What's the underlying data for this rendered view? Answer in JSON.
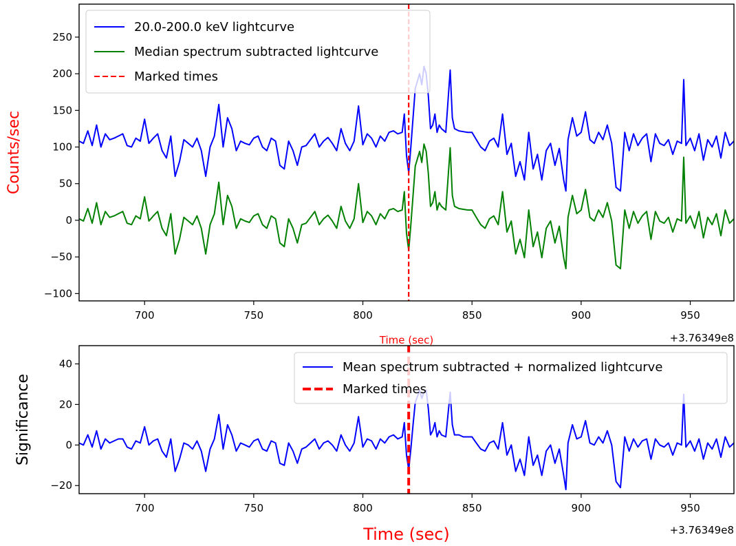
{
  "chart_data": [
    {
      "type": "line",
      "xlabel": "Time (sec)",
      "ylabel": "Counts/sec",
      "xlabel_color": "#ff0000",
      "ylabel_color": "#ff0000",
      "x_offset_label": "+3.76349e8",
      "xlim": [
        670,
        970
      ],
      "ylim": [
        -110,
        295
      ],
      "xticks": [
        700,
        750,
        800,
        850,
        900,
        950
      ],
      "yticks": [
        -100,
        -50,
        0,
        50,
        100,
        150,
        200,
        250
      ],
      "grid": false,
      "legend_position": "top-left",
      "marked_times": [
        821
      ],
      "series": [
        {
          "name": "20.0-200.0 keV lightcurve",
          "color": "#0000ff",
          "x": [
            670,
            672,
            674,
            676,
            678,
            680,
            682,
            684,
            686,
            688,
            690,
            692,
            694,
            696,
            698,
            700,
            702,
            704,
            706,
            708,
            710,
            712,
            714,
            716,
            718,
            720,
            722,
            724,
            726,
            728,
            730,
            732,
            734,
            736,
            738,
            740,
            742,
            744,
            746,
            748,
            750,
            752,
            754,
            756,
            758,
            760,
            762,
            764,
            766,
            768,
            770,
            772,
            774,
            776,
            778,
            780,
            782,
            784,
            786,
            788,
            790,
            792,
            794,
            796,
            798,
            800,
            802,
            804,
            806,
            808,
            810,
            812,
            814,
            816,
            818,
            819,
            820,
            821,
            822,
            823,
            824,
            825,
            826,
            827,
            828,
            829,
            830,
            831,
            832,
            833,
            834,
            835,
            836,
            838,
            840,
            841,
            842,
            844,
            846,
            848,
            850,
            852,
            854,
            856,
            858,
            860,
            862,
            864,
            866,
            868,
            870,
            872,
            874,
            876,
            878,
            880,
            882,
            884,
            886,
            888,
            890,
            892,
            893,
            894,
            896,
            898,
            900,
            902,
            904,
            906,
            908,
            910,
            912,
            914,
            916,
            918,
            920,
            922,
            924,
            926,
            928,
            930,
            932,
            934,
            936,
            938,
            940,
            942,
            944,
            946,
            947,
            948,
            950,
            952,
            954,
            956,
            958,
            960,
            962,
            964,
            966,
            968,
            970
          ],
          "y": [
            108,
            105,
            122,
            102,
            130,
            100,
            118,
            110,
            112,
            115,
            118,
            102,
            100,
            112,
            108,
            138,
            105,
            112,
            118,
            95,
            85,
            115,
            60,
            80,
            110,
            105,
            100,
            112,
            95,
            60,
            100,
            115,
            158,
            100,
            140,
            125,
            95,
            108,
            105,
            103,
            112,
            115,
            100,
            95,
            112,
            108,
            75,
            70,
            108,
            95,
            75,
            100,
            102,
            110,
            118,
            100,
            108,
            113,
            105,
            95,
            125,
            105,
            95,
            108,
            156,
            103,
            118,
            112,
            100,
            115,
            108,
            120,
            122,
            118,
            120,
            145,
            88,
            65,
            100,
            140,
            180,
            190,
            200,
            185,
            210,
            200,
            170,
            125,
            130,
            145,
            120,
            130,
            125,
            120,
            205,
            140,
            125,
            122,
            121,
            120,
            120,
            110,
            100,
            95,
            108,
            112,
            100,
            145,
            90,
            105,
            60,
            80,
            55,
            120,
            70,
            90,
            55,
            95,
            105,
            75,
            98,
            55,
            40,
            110,
            140,
            115,
            120,
            148,
            110,
            105,
            120,
            110,
            130,
            105,
            45,
            40,
            120,
            95,
            118,
            102,
            112,
            118,
            80,
            118,
            105,
            102,
            110,
            90,
            108,
            105,
            192,
            102,
            112,
            95,
            118,
            82,
            110,
            100,
            115,
            85,
            120,
            102,
            108
          ]
        },
        {
          "name": "Median spectrum subtracted lightcurve",
          "color": "#008000",
          "x": [
            670,
            672,
            674,
            676,
            678,
            680,
            682,
            684,
            686,
            688,
            690,
            692,
            694,
            696,
            698,
            700,
            702,
            704,
            706,
            708,
            710,
            712,
            714,
            716,
            718,
            720,
            722,
            724,
            726,
            728,
            730,
            732,
            734,
            736,
            738,
            740,
            742,
            744,
            746,
            748,
            750,
            752,
            754,
            756,
            758,
            760,
            762,
            764,
            766,
            768,
            770,
            772,
            774,
            776,
            778,
            780,
            782,
            784,
            786,
            788,
            790,
            792,
            794,
            796,
            798,
            800,
            802,
            804,
            806,
            808,
            810,
            812,
            814,
            816,
            818,
            819,
            820,
            821,
            822,
            823,
            824,
            825,
            826,
            827,
            828,
            829,
            830,
            831,
            832,
            833,
            834,
            835,
            836,
            838,
            840,
            841,
            842,
            844,
            846,
            848,
            850,
            852,
            854,
            856,
            858,
            860,
            862,
            864,
            866,
            868,
            870,
            872,
            874,
            876,
            878,
            880,
            882,
            884,
            886,
            888,
            890,
            892,
            893,
            894,
            896,
            898,
            900,
            902,
            904,
            906,
            908,
            910,
            912,
            914,
            916,
            918,
            920,
            922,
            924,
            926,
            928,
            930,
            932,
            934,
            936,
            938,
            940,
            942,
            944,
            946,
            947,
            948,
            950,
            952,
            954,
            956,
            958,
            960,
            962,
            964,
            966,
            968,
            970
          ],
          "y": [
            2,
            -1,
            16,
            -4,
            24,
            -6,
            12,
            4,
            6,
            9,
            12,
            -4,
            -6,
            6,
            2,
            32,
            -1,
            6,
            12,
            -11,
            -21,
            9,
            -46,
            -26,
            4,
            -1,
            -6,
            6,
            -11,
            -46,
            -6,
            9,
            52,
            -6,
            34,
            19,
            -11,
            2,
            -1,
            -3,
            6,
            9,
            -6,
            -11,
            6,
            2,
            -31,
            -36,
            2,
            -11,
            -31,
            -6,
            -4,
            4,
            12,
            -6,
            2,
            7,
            -1,
            -11,
            19,
            -1,
            -11,
            2,
            50,
            -3,
            12,
            6,
            -6,
            9,
            2,
            14,
            16,
            12,
            14,
            39,
            -18,
            -41,
            -6,
            34,
            74,
            84,
            94,
            79,
            104,
            94,
            64,
            19,
            24,
            39,
            14,
            24,
            19,
            14,
            99,
            34,
            19,
            16,
            15,
            14,
            14,
            4,
            -6,
            -11,
            2,
            6,
            -6,
            39,
            -16,
            -1,
            -46,
            -26,
            -51,
            14,
            -36,
            -16,
            -51,
            -11,
            -1,
            -31,
            -8,
            -51,
            -66,
            4,
            34,
            9,
            14,
            42,
            4,
            -1,
            14,
            4,
            24,
            -1,
            -61,
            -66,
            14,
            -11,
            12,
            -4,
            6,
            12,
            -26,
            12,
            -1,
            -4,
            4,
            -16,
            2,
            -1,
            86,
            -4,
            6,
            -11,
            12,
            -24,
            4,
            -6,
            9,
            -21,
            14,
            -4,
            2
          ]
        }
      ]
    },
    {
      "type": "line",
      "xlabel": "Time (sec)",
      "ylabel": "Significance",
      "xlabel_color": "#ff0000",
      "ylabel_color": "#000000",
      "x_offset_label": "+3.76349e8",
      "xlim": [
        670,
        970
      ],
      "ylim": [
        -24,
        49
      ],
      "xticks": [
        700,
        750,
        800,
        850,
        900,
        950
      ],
      "yticks": [
        -20,
        0,
        20,
        40
      ],
      "grid": false,
      "legend_position": "top-right",
      "marked_times": [
        821
      ],
      "series": [
        {
          "name": "Mean spectrum subtracted + normalized lightcurve",
          "color": "#0000ff",
          "x": [
            670,
            672,
            674,
            676,
            678,
            680,
            682,
            684,
            686,
            688,
            690,
            692,
            694,
            696,
            698,
            700,
            702,
            704,
            706,
            708,
            710,
            712,
            714,
            716,
            718,
            720,
            722,
            724,
            726,
            728,
            730,
            732,
            734,
            736,
            738,
            740,
            742,
            744,
            746,
            748,
            750,
            752,
            754,
            756,
            758,
            760,
            762,
            764,
            766,
            768,
            770,
            772,
            774,
            776,
            778,
            780,
            782,
            784,
            786,
            788,
            790,
            792,
            794,
            796,
            798,
            800,
            802,
            804,
            806,
            808,
            810,
            812,
            814,
            816,
            818,
            819,
            820,
            821,
            822,
            823,
            824,
            825,
            826,
            827,
            828,
            829,
            830,
            831,
            832,
            833,
            834,
            835,
            836,
            838,
            840,
            841,
            842,
            844,
            846,
            848,
            850,
            852,
            854,
            856,
            858,
            860,
            862,
            864,
            866,
            868,
            870,
            872,
            874,
            876,
            878,
            880,
            882,
            884,
            886,
            888,
            890,
            892,
            893,
            894,
            896,
            898,
            900,
            902,
            904,
            906,
            908,
            910,
            912,
            914,
            916,
            918,
            920,
            922,
            924,
            926,
            928,
            930,
            932,
            934,
            936,
            938,
            940,
            942,
            944,
            946,
            947,
            948,
            950,
            952,
            954,
            956,
            958,
            960,
            962,
            964,
            966,
            968,
            970
          ],
          "y": [
            1,
            0,
            5,
            -1,
            7,
            -2,
            3,
            1,
            2,
            3,
            3,
            -1,
            -2,
            2,
            1,
            9,
            0,
            2,
            3,
            -3,
            -6,
            3,
            -13,
            -7,
            1,
            0,
            -2,
            2,
            -3,
            -13,
            -2,
            3,
            15,
            -2,
            10,
            5,
            -3,
            1,
            0,
            -1,
            2,
            3,
            -2,
            -3,
            2,
            1,
            -9,
            -10,
            1,
            -3,
            -9,
            -2,
            -1,
            1,
            3,
            -2,
            1,
            2,
            0,
            -3,
            5,
            0,
            -3,
            1,
            14,
            -1,
            3,
            2,
            -2,
            3,
            1,
            4,
            5,
            3,
            4,
            11,
            -5,
            -12,
            -2,
            10,
            21,
            24,
            27,
            23,
            26,
            27,
            18,
            5,
            7,
            11,
            4,
            7,
            5,
            4,
            26,
            10,
            5,
            5,
            4,
            4,
            4,
            1,
            -2,
            -3,
            1,
            2,
            -2,
            11,
            -5,
            0,
            -13,
            -7,
            -15,
            4,
            -10,
            -5,
            -15,
            -3,
            0,
            -9,
            -2,
            -15,
            -22,
            1,
            10,
            3,
            4,
            12,
            1,
            0,
            4,
            1,
            7,
            0,
            -18,
            -21,
            4,
            -3,
            3,
            -1,
            2,
            3,
            -7,
            3,
            0,
            -1,
            1,
            -5,
            1,
            0,
            25,
            -1,
            2,
            -3,
            3,
            -7,
            1,
            -2,
            3,
            -6,
            4,
            -1,
            1
          ]
        }
      ]
    }
  ],
  "legends": [
    {
      "entries": [
        {
          "label": "20.0-200.0 keV lightcurve",
          "color": "#0000ff",
          "style": "solid"
        },
        {
          "label": "Median spectrum subtracted lightcurve",
          "color": "#008000",
          "style": "solid"
        },
        {
          "label": "Marked times",
          "color": "#ff0000",
          "style": "dashed"
        }
      ]
    },
    {
      "entries": [
        {
          "label": "Mean spectrum subtracted + normalized lightcurve",
          "color": "#0000ff",
          "style": "solid"
        },
        {
          "label": "Marked times",
          "color": "#ff0000",
          "style": "dashed"
        }
      ]
    }
  ]
}
